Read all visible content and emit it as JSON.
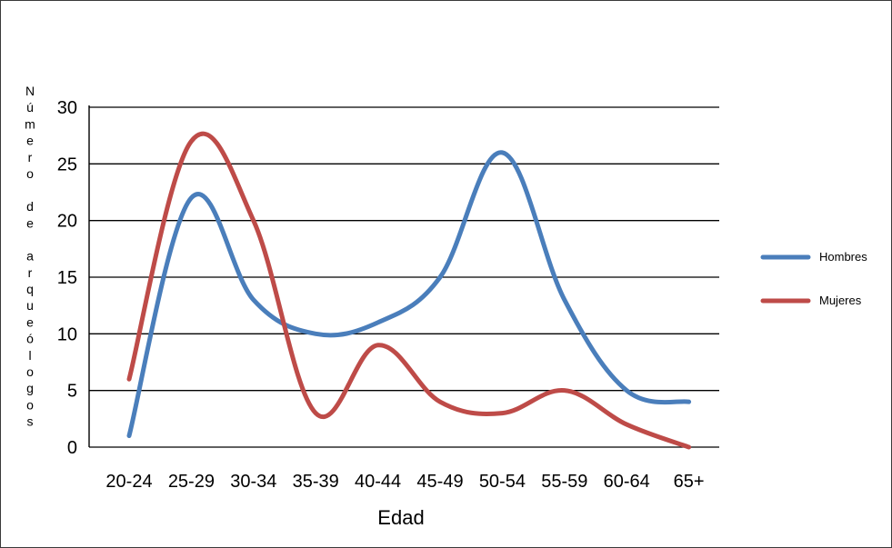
{
  "chart_data": {
    "type": "line",
    "title": "",
    "xlabel": "Edad",
    "ylabel": "Número de arqueólogos",
    "categories": [
      "20-24",
      "25-29",
      "30-34",
      "35-39",
      "40-44",
      "45-49",
      "50-54",
      "55-59",
      "60-64",
      "65+"
    ],
    "series": [
      {
        "name": "Hombres",
        "color": "#4a7ebb",
        "values": [
          1,
          22,
          13,
          10,
          11,
          15,
          26,
          13,
          5,
          4
        ]
      },
      {
        "name": "Mujeres",
        "color": "#be4b48",
        "values": [
          6,
          27,
          20,
          3,
          9,
          4,
          3,
          5,
          2,
          0
        ]
      }
    ],
    "ylim": [
      0,
      30
    ],
    "yticks": [
      "0",
      "5",
      "10",
      "15",
      "20",
      "25",
      "30"
    ],
    "grid": true,
    "legend_position": "right",
    "smooth": true
  }
}
